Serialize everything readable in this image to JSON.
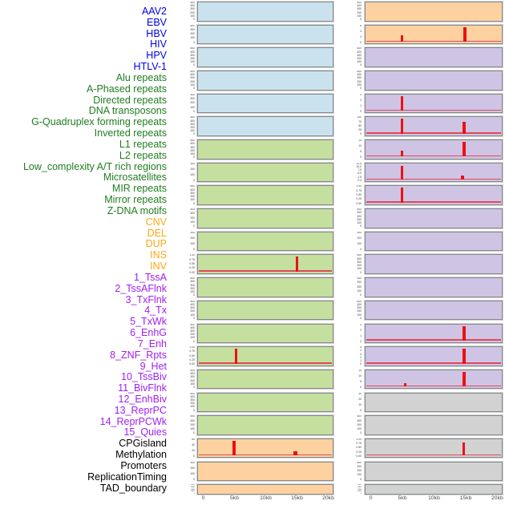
{
  "colors": {
    "label": {
      "virus": "#0000ee",
      "repeat": "#1f7d1f",
      "sv": "#ffa513",
      "state": "#a020f0",
      "other": "#000000"
    },
    "panel": {
      "blue": "#c9e2ee",
      "green": "#c5df9e",
      "orange": "#fdd2a0",
      "purple": "#cfc4e4",
      "gray": "#d2d2d2"
    },
    "spike": "#ec1111",
    "baseline": "#e0495a"
  },
  "chart_data": {
    "type": "area",
    "title": "",
    "subtitle": "",
    "x_axis_ticks": [
      "0",
      "5kb",
      "10kb",
      "15kb",
      "20kb"
    ],
    "x_range_kb": [
      0,
      20
    ],
    "legend": "none",
    "grid": false,
    "layout": "44 tracks listed in one label column; profiles drawn in two panel columns (left = tracks 1-22 top to bottom, right = tracks 23-44)",
    "columns": {
      "left": [
        {
          "name": "AAV2",
          "group": "virus",
          "panel_color": "blue",
          "y_ticks": [
            "500",
            "400",
            "300",
            "200",
            "100",
            "0"
          ],
          "baseline": false,
          "peaks": []
        },
        {
          "name": "EBV",
          "group": "virus",
          "panel_color": "blue",
          "y_ticks": [
            "400",
            "300",
            "200",
            "100",
            "0"
          ],
          "baseline": false,
          "peaks": []
        },
        {
          "name": "HBV",
          "group": "virus",
          "panel_color": "blue",
          "y_ticks": [
            "500",
            "400",
            "300",
            "200",
            "100",
            "0"
          ],
          "baseline": false,
          "peaks": []
        },
        {
          "name": "HIV",
          "group": "virus",
          "panel_color": "blue",
          "y_ticks": [
            "500",
            "400",
            "300",
            "200",
            "100",
            "0"
          ],
          "baseline": false,
          "peaks": []
        },
        {
          "name": "HPV",
          "group": "virus",
          "panel_color": "blue",
          "y_ticks": [
            "400",
            "300",
            "200",
            "100",
            "0"
          ],
          "baseline": false,
          "peaks": []
        },
        {
          "name": "HTLV-1",
          "group": "virus",
          "panel_color": "blue",
          "y_ticks": [
            "500",
            "400",
            "300",
            "200",
            "100",
            "0"
          ],
          "baseline": false,
          "peaks": []
        },
        {
          "name": "Alu repeats",
          "group": "repeat",
          "panel_color": "green",
          "y_ticks": [
            "500",
            "400",
            "300",
            "200",
            "100",
            "0"
          ],
          "baseline": false,
          "peaks": []
        },
        {
          "name": "A-Phased repeats",
          "group": "repeat",
          "panel_color": "green",
          "y_ticks": [
            "300",
            "200",
            "100",
            "0"
          ],
          "baseline": false,
          "peaks": []
        },
        {
          "name": "Directed repeats",
          "group": "repeat",
          "panel_color": "green",
          "y_ticks": [
            "500",
            "400",
            "300",
            "200",
            "100",
            "0"
          ],
          "baseline": false,
          "peaks": []
        },
        {
          "name": "DNA transposons",
          "group": "repeat",
          "panel_color": "green",
          "y_ticks": [
            "400",
            "300",
            "200",
            "100",
            "0"
          ],
          "baseline": false,
          "peaks": []
        },
        {
          "name": "G-Quadruplex forming repeats",
          "group": "repeat",
          "panel_color": "green",
          "y_ticks": [
            "300",
            "200",
            "100",
            "0"
          ],
          "baseline": false,
          "peaks": []
        },
        {
          "name": "Inverted repeats",
          "group": "repeat",
          "panel_color": "green",
          "y_ticks": [
            "1.00",
            "0.75",
            "0.50",
            "0.25",
            "0.00"
          ],
          "baseline": true,
          "peaks": [
            {
              "x_kb": 15,
              "value": 1.0,
              "h": 1.0,
              "w": 3
            }
          ]
        },
        {
          "name": "L1 repeats",
          "group": "repeat",
          "panel_color": "green",
          "y_ticks": [
            "500",
            "400",
            "300",
            "200",
            "100",
            "0"
          ],
          "baseline": false,
          "peaks": []
        },
        {
          "name": "L2 repeats",
          "group": "repeat",
          "panel_color": "green",
          "y_ticks": [
            "500",
            "400",
            "300",
            "200",
            "100",
            "0"
          ],
          "baseline": false,
          "peaks": []
        },
        {
          "name": "Low_complexity A/T rich regions",
          "group": "repeat",
          "panel_color": "green",
          "y_ticks": [
            "500",
            "400",
            "300",
            "200",
            "100",
            "0"
          ],
          "baseline": false,
          "peaks": []
        },
        {
          "name": "Microsatellites",
          "group": "repeat",
          "panel_color": "green",
          "y_ticks": [
            "1.00",
            "0.75",
            "0.50",
            "0.25",
            "0.00"
          ],
          "baseline": true,
          "peaks": [
            {
              "x_kb": 5.3,
              "value": 1.0,
              "h": 1.0,
              "w": 3
            }
          ]
        },
        {
          "name": "MIR repeats",
          "group": "repeat",
          "panel_color": "green",
          "y_ticks": [
            "500",
            "400",
            "300",
            "200",
            "100",
            "0"
          ],
          "baseline": false,
          "peaks": []
        },
        {
          "name": "Mirror repeats",
          "group": "repeat",
          "panel_color": "green",
          "y_ticks": [
            "500",
            "400",
            "300",
            "200",
            "100",
            "0"
          ],
          "baseline": false,
          "peaks": []
        },
        {
          "name": "Z-DNA motifs",
          "group": "repeat",
          "panel_color": "green",
          "y_ticks": [
            "400",
            "300",
            "200",
            "100",
            "0"
          ],
          "baseline": false,
          "peaks": []
        },
        {
          "name": "CNV",
          "group": "sv",
          "panel_color": "orange",
          "y_ticks": [
            "60",
            "40",
            "20",
            "0"
          ],
          "baseline": true,
          "peaks": [
            {
              "x_kb": 5,
              "value": 63,
              "h": 1.0,
              "w": 4
            },
            {
              "x_kb": 14.8,
              "value": 16,
              "h": 0.27,
              "w": 5
            }
          ]
        },
        {
          "name": "DEL",
          "group": "sv",
          "panel_color": "orange",
          "y_ticks": [
            "300",
            "200",
            "100",
            "0"
          ],
          "baseline": false,
          "peaks": []
        },
        {
          "name": "DUP",
          "group": "sv",
          "panel_color": "orange",
          "y_ticks": [
            "4000",
            "3000",
            "2000",
            "1000",
            "0"
          ],
          "baseline": false,
          "peaks": []
        }
      ],
      "right": [
        {
          "name": "INS",
          "group": "sv",
          "panel_color": "orange",
          "y_ticks": [
            "500",
            "400",
            "300",
            "200",
            "100",
            "0"
          ],
          "baseline": false,
          "peaks": []
        },
        {
          "name": "INV",
          "group": "sv",
          "panel_color": "orange",
          "y_ticks": [
            "6",
            "4",
            "2",
            "0"
          ],
          "baseline": true,
          "peaks": [
            {
              "x_kb": 5,
              "value": 2.6,
              "h": 0.42,
              "w": 3
            },
            {
              "x_kb": 14.9,
              "value": 6.2,
              "h": 1.0,
              "w": 4
            }
          ]
        },
        {
          "name": "1_TssA",
          "group": "state",
          "panel_color": "purple",
          "y_ticks": [
            "500",
            "400",
            "300",
            "200",
            "100",
            "0"
          ],
          "baseline": false,
          "peaks": []
        },
        {
          "name": "2_TssAFlnk",
          "group": "state",
          "panel_color": "purple",
          "y_ticks": [
            "500",
            "400",
            "300",
            "200",
            "100",
            "0"
          ],
          "baseline": false,
          "peaks": []
        },
        {
          "name": "3_TxFlnk",
          "group": "state",
          "panel_color": "purple",
          "y_ticks": [
            "3",
            "2",
            "1",
            "0"
          ],
          "baseline": true,
          "peaks": [
            {
              "x_kb": 5,
              "value": 3.1,
              "h": 1.0,
              "w": 3
            }
          ]
        },
        {
          "name": "4_Tx",
          "group": "state",
          "panel_color": "purple",
          "y_ticks": [
            "100",
            "75",
            "50",
            "25",
            "0"
          ],
          "baseline": true,
          "peaks": [
            {
              "x_kb": 5,
              "value": 103,
              "h": 1.0,
              "w": 3
            },
            {
              "x_kb": 14.8,
              "value": 80,
              "h": 0.8,
              "w": 4
            }
          ]
        },
        {
          "name": "5_TxWk",
          "group": "state",
          "panel_color": "purple",
          "y_ticks": [
            "15",
            "10",
            "5",
            "0"
          ],
          "baseline": true,
          "peaks": [
            {
              "x_kb": 5,
              "value": 5.5,
              "h": 0.38,
              "w": 3
            },
            {
              "x_kb": 14.8,
              "value": 15.5,
              "h": 1.0,
              "w": 4
            }
          ]
        },
        {
          "name": "6_EnhG",
          "group": "state",
          "panel_color": "purple",
          "y_ticks": [
            "12.5",
            "10.0",
            "7.5",
            "5.0",
            "2.5",
            "0.0"
          ],
          "baseline": true,
          "peaks": [
            {
              "x_kb": 5,
              "value": 12.3,
              "h": 0.95,
              "w": 3
            },
            {
              "x_kb": 14.6,
              "value": 3.4,
              "h": 0.26,
              "w": 4
            }
          ]
        },
        {
          "name": "7_Enh",
          "group": "state",
          "panel_color": "purple",
          "y_ticks": [
            "1.00",
            "0.75",
            "0.50",
            "0.25",
            "0.00"
          ],
          "baseline": true,
          "peaks": [
            {
              "x_kb": 5,
              "value": 1.0,
              "h": 1.0,
              "w": 3
            }
          ]
        },
        {
          "name": "8_ZNF_Rpts",
          "group": "state",
          "panel_color": "purple",
          "y_ticks": [
            "500",
            "400",
            "300",
            "200",
            "100",
            "0"
          ],
          "baseline": false,
          "peaks": []
        },
        {
          "name": "9_Het",
          "group": "state",
          "panel_color": "purple",
          "y_ticks": [
            "300",
            "200",
            "100",
            "0"
          ],
          "baseline": false,
          "peaks": []
        },
        {
          "name": "10_TssBiv",
          "group": "state",
          "panel_color": "purple",
          "y_ticks": [
            "500",
            "400",
            "300",
            "200",
            "100",
            "0"
          ],
          "baseline": false,
          "peaks": []
        },
        {
          "name": "11_BivFlnk",
          "group": "state",
          "panel_color": "purple",
          "y_ticks": [
            "400",
            "300",
            "200",
            "100",
            "0"
          ],
          "baseline": false,
          "peaks": []
        },
        {
          "name": "12_EnhBiv",
          "group": "state",
          "panel_color": "purple",
          "y_ticks": [
            "500",
            "400",
            "300",
            "200",
            "100",
            "0"
          ],
          "baseline": false,
          "peaks": []
        },
        {
          "name": "13_ReprPC",
          "group": "state",
          "panel_color": "purple",
          "y_ticks": [
            "3",
            "2",
            "1",
            "0"
          ],
          "baseline": true,
          "peaks": [
            {
              "x_kb": 14.8,
              "value": 3.1,
              "h": 1.0,
              "w": 4
            }
          ]
        },
        {
          "name": "14_ReprPCWk",
          "group": "state",
          "panel_color": "purple",
          "y_ticks": [
            "5",
            "4",
            "3",
            "2",
            "1",
            "0"
          ],
          "baseline": true,
          "peaks": [
            {
              "x_kb": 14.8,
              "value": 5.2,
              "h": 1.0,
              "w": 4
            }
          ]
        },
        {
          "name": "15_Quies",
          "group": "state",
          "panel_color": "purple",
          "y_ticks": [
            "15",
            "10",
            "5",
            "0"
          ],
          "baseline": true,
          "peaks": [
            {
              "x_kb": 5.5,
              "value": 3.8,
              "h": 0.24,
              "w": 3
            },
            {
              "x_kb": 14.8,
              "value": 15.5,
              "h": 1.0,
              "w": 4
            }
          ]
        },
        {
          "name": "CPGisland",
          "group": "other",
          "panel_color": "gray",
          "y_ticks": [
            "30",
            "20",
            "10",
            "0"
          ],
          "baseline": false,
          "peaks": []
        },
        {
          "name": "Methylation",
          "group": "other",
          "panel_color": "gray",
          "y_ticks": [
            "400",
            "300",
            "200",
            "100",
            "0"
          ],
          "baseline": false,
          "peaks": []
        },
        {
          "name": "Promoters",
          "group": "other",
          "panel_color": "gray",
          "y_ticks": [
            "1.00",
            "0.75",
            "0.50",
            "0.25",
            "0.00"
          ],
          "baseline": true,
          "peaks": [
            {
              "x_kb": 14.8,
              "value": 0.9,
              "h": 0.88,
              "w": 3
            }
          ]
        },
        {
          "name": "ReplicationTiming",
          "group": "other",
          "panel_color": "gray",
          "y_ticks": [
            "400",
            "300",
            "200",
            "100",
            "0"
          ],
          "baseline": false,
          "peaks": []
        },
        {
          "name": "TAD_boundary",
          "group": "other",
          "panel_color": "gray",
          "y_ticks": [
            "4000",
            "3000",
            "2000",
            "1000",
            "0"
          ],
          "baseline": false,
          "peaks": []
        }
      ]
    }
  }
}
